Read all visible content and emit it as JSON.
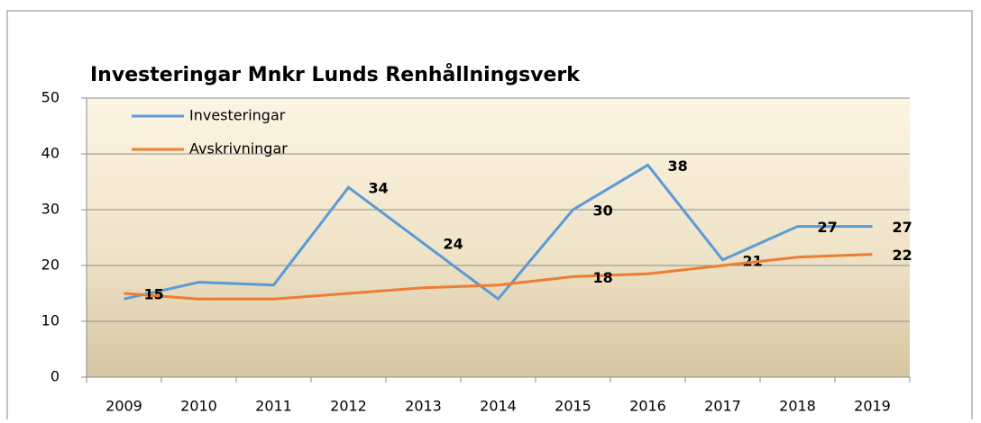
{
  "chart_data": {
    "type": "line",
    "title": "Investeringar Mnkr Lunds Renhållningsverk",
    "categories": [
      "2009",
      "2010",
      "2011",
      "2012",
      "2013",
      "2014",
      "2015",
      "2016",
      "2017",
      "2018",
      "2019"
    ],
    "series": [
      {
        "name": "Investeringar",
        "color": "#5b9bd5",
        "values": [
          14,
          17,
          16.5,
          34,
          24,
          14,
          30,
          38,
          21,
          27,
          27
        ],
        "value_labels": [
          null,
          null,
          null,
          "34",
          "24",
          null,
          "30",
          "38",
          "21",
          "27",
          "27"
        ]
      },
      {
        "name": "Avskrivningar",
        "color": "#ed7d31",
        "values": [
          15,
          14,
          14,
          15,
          16,
          16.5,
          18,
          18.5,
          20,
          21.5,
          22
        ],
        "value_labels": [
          "15",
          null,
          null,
          null,
          null,
          null,
          "18",
          null,
          null,
          null,
          "22"
        ]
      }
    ],
    "ylim": [
      0,
      50
    ],
    "yticks": [
      0,
      10,
      20,
      30,
      40,
      50
    ],
    "grid": true,
    "legend": "top-left"
  }
}
